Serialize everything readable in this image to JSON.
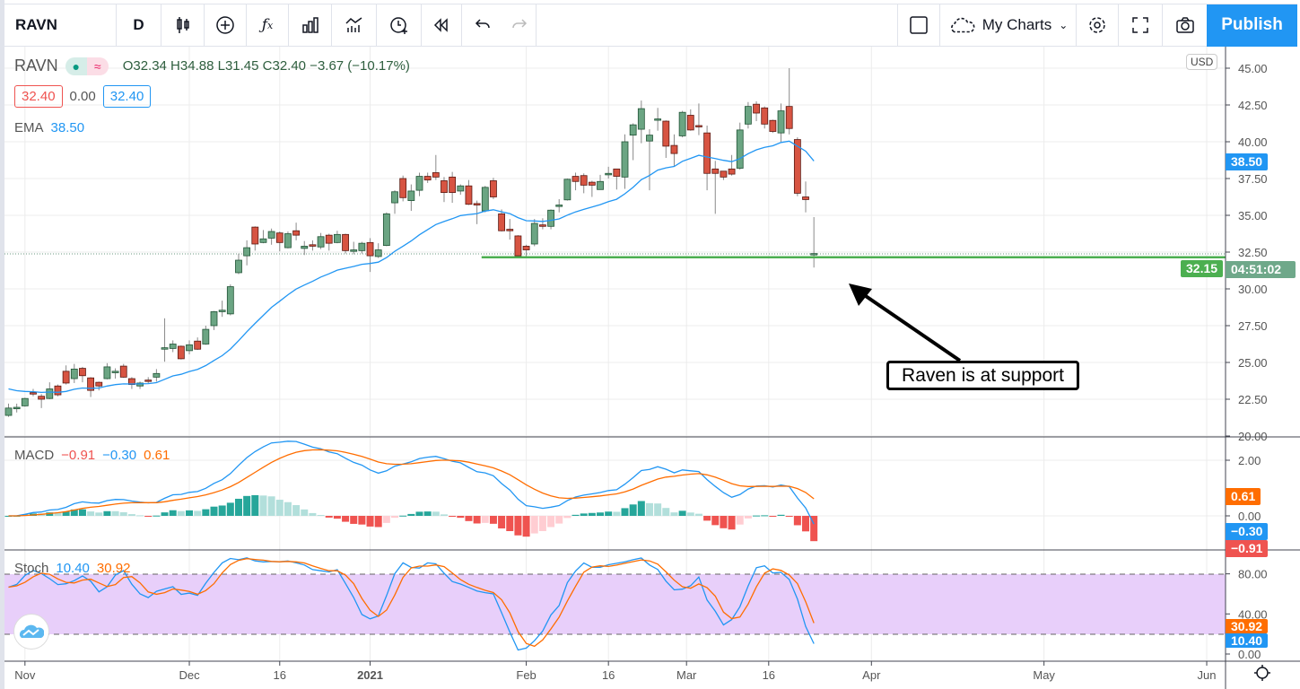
{
  "toolbar": {
    "symbol": "RAVN",
    "interval": "D",
    "my_charts": "My Charts",
    "publish": "Publish",
    "icons": [
      "candles-icon",
      "add-compare-icon",
      "indicators-icon",
      "bar-style-icon",
      "templates-icon",
      "alert-icon",
      "replay-icon",
      "undo-icon",
      "redo-icon",
      "layout-icon",
      "cloud-icon",
      "settings-icon",
      "fullscreen-icon",
      "camera-icon"
    ]
  },
  "legend": {
    "symbol": "RAVN",
    "ohlc": "O32.34 H34.88 L31.45 C32.40 −3.67 (−10.17%)",
    "bid": "32.40",
    "spread": "0.00",
    "ask": "32.40",
    "ema_label": "EMA",
    "ema_value": "38.50",
    "macd_label": "MACD",
    "macd_hist": "−0.91",
    "macd_value": "−0.30",
    "macd_signal": "0.61",
    "stoch_label": "Stoch",
    "stoch_k": "10.40",
    "stoch_d": "30.92"
  },
  "axis_labels": {
    "currency": "USD",
    "ema": "38.50",
    "countdown": "04:51:02",
    "support": "32.15",
    "macd_signal": "0.61",
    "macd_value": "−0.30",
    "macd_hist": "−0.91",
    "stoch_d": "30.92",
    "stoch_k": "10.40"
  },
  "annotation": {
    "text": "Raven is at support"
  },
  "colors": {
    "up": "#6ba583",
    "down": "#d75442",
    "ema": "#2196f3",
    "signal": "#ff6d00",
    "support": "#4caf50",
    "accent": "#2196f3"
  },
  "chart_data": {
    "type": "candlestick",
    "symbol": "RAVN",
    "interval": "D",
    "price_ticks": [
      "45.00",
      "42.50",
      "40.00",
      "37.50",
      "35.00",
      "32.50",
      "30.00",
      "27.50",
      "25.00",
      "22.50",
      "20.00"
    ],
    "price_range": [
      20,
      46.5
    ],
    "time_ticks": [
      {
        "label": "Nov",
        "i": 2
      },
      {
        "label": "Dec",
        "i": 22
      },
      {
        "label": "16",
        "i": 33
      },
      {
        "label": "2021",
        "i": 44,
        "bold": true
      },
      {
        "label": "Feb",
        "i": 63
      },
      {
        "label": "16",
        "i": 73
      },
      {
        "label": "Mar",
        "i": 82.5
      },
      {
        "label": "16",
        "i": 92.5
      },
      {
        "label": "Apr",
        "i": 105
      },
      {
        "label": "May",
        "i": 126
      },
      {
        "label": "Jun",
        "i": 145.8
      }
    ],
    "support_level": 32.15,
    "support_from_index": 58,
    "ema": {
      "period": 20,
      "seed": 23.2
    },
    "macd": {
      "fast": 12,
      "slow": 26,
      "signal": 9,
      "ticks": [
        "2.00",
        "0.00"
      ]
    },
    "stoch": {
      "k": 14,
      "smooth": 3,
      "d": 3,
      "upper": 80,
      "lower": 20,
      "ticks": [
        "80.00",
        "40.00",
        "0.00"
      ]
    },
    "ohlc": [
      [
        21.4,
        22.2,
        21.3,
        21.9
      ],
      [
        21.85,
        22.2,
        21.6,
        21.95
      ],
      [
        22.05,
        22.6,
        22.0,
        22.55
      ],
      [
        22.95,
        23.2,
        22.7,
        22.85
      ],
      [
        22.7,
        22.85,
        21.9,
        22.5
      ],
      [
        22.55,
        23.65,
        22.5,
        23.2
      ],
      [
        23.4,
        23.5,
        22.7,
        22.8
      ],
      [
        24.4,
        24.8,
        23.5,
        23.6
      ],
      [
        23.9,
        24.9,
        23.6,
        24.55
      ],
      [
        24.6,
        24.7,
        23.65,
        24.1
      ],
      [
        23.95,
        24.0,
        22.65,
        23.1
      ],
      [
        23.65,
        23.7,
        23.1,
        23.4
      ],
      [
        23.9,
        24.95,
        23.85,
        24.7
      ],
      [
        24.3,
        24.6,
        23.9,
        24.4
      ],
      [
        24.75,
        24.9,
        23.95,
        24.0
      ],
      [
        23.9,
        24.0,
        23.2,
        23.5
      ],
      [
        23.4,
        23.7,
        23.2,
        23.6
      ],
      [
        23.8,
        24.0,
        23.6,
        23.75
      ],
      [
        24.0,
        24.55,
        23.7,
        24.25
      ],
      [
        25.9,
        28.0,
        25.05,
        26.0
      ],
      [
        25.95,
        26.5,
        25.7,
        26.25
      ],
      [
        26.1,
        26.15,
        25.2,
        25.25
      ],
      [
        25.8,
        26.5,
        25.55,
        26.2
      ],
      [
        26.45,
        26.7,
        25.85,
        25.9
      ],
      [
        26.25,
        27.5,
        26.2,
        27.25
      ],
      [
        27.5,
        28.5,
        27.2,
        28.45
      ],
      [
        28.45,
        29.2,
        28.1,
        28.55
      ],
      [
        28.3,
        30.3,
        28.2,
        30.15
      ],
      [
        31.1,
        32.4,
        31.0,
        31.95
      ],
      [
        32.25,
        33.3,
        31.6,
        32.8
      ],
      [
        34.2,
        34.25,
        32.6,
        33.05
      ],
      [
        33.15,
        34.0,
        33.1,
        33.4
      ],
      [
        33.45,
        34.1,
        33.0,
        33.9
      ],
      [
        33.8,
        33.9,
        32.55,
        33.15
      ],
      [
        32.8,
        33.9,
        32.75,
        33.75
      ],
      [
        33.95,
        34.5,
        33.3,
        33.65
      ],
      [
        32.75,
        33.25,
        32.3,
        32.9
      ],
      [
        33.0,
        33.3,
        32.6,
        32.9
      ],
      [
        32.85,
        33.8,
        32.7,
        33.55
      ],
      [
        33.65,
        33.75,
        32.6,
        33.1
      ],
      [
        33.15,
        33.95,
        33.1,
        33.7
      ],
      [
        33.7,
        33.75,
        32.4,
        32.6
      ],
      [
        32.55,
        33.2,
        32.35,
        32.65
      ],
      [
        32.6,
        33.2,
        32.4,
        33.1
      ],
      [
        33.15,
        33.45,
        31.15,
        32.25
      ],
      [
        32.2,
        33.1,
        32.1,
        32.65
      ],
      [
        32.95,
        35.2,
        32.9,
        35.1
      ],
      [
        35.85,
        36.7,
        35.1,
        36.6
      ],
      [
        37.5,
        37.7,
        35.95,
        36.2
      ],
      [
        36.0,
        37.1,
        35.3,
        36.65
      ],
      [
        36.7,
        37.9,
        36.3,
        37.65
      ],
      [
        37.65,
        37.9,
        37.2,
        37.4
      ],
      [
        37.9,
        39.1,
        37.4,
        37.6
      ],
      [
        37.35,
        37.6,
        35.9,
        36.55
      ],
      [
        37.6,
        37.95,
        35.85,
        36.55
      ],
      [
        36.65,
        37.1,
        36.4,
        37.0
      ],
      [
        37.0,
        37.4,
        35.7,
        35.75
      ],
      [
        35.8,
        36.0,
        34.4,
        35.7
      ],
      [
        35.3,
        37.0,
        35.2,
        36.9
      ],
      [
        37.35,
        37.55,
        36.1,
        36.25
      ],
      [
        35.1,
        35.4,
        33.9,
        33.95
      ],
      [
        34.05,
        34.75,
        33.35,
        33.95
      ],
      [
        33.6,
        33.65,
        32.2,
        32.25
      ],
      [
        32.9,
        33.0,
        32.2,
        32.65
      ],
      [
        33.05,
        34.75,
        32.9,
        34.45
      ],
      [
        34.35,
        34.8,
        34.05,
        34.25
      ],
      [
        34.25,
        35.4,
        34.05,
        35.35
      ],
      [
        35.6,
        36.1,
        35.2,
        35.7
      ],
      [
        36.05,
        37.5,
        36.0,
        37.45
      ],
      [
        37.65,
        37.9,
        36.7,
        37.3
      ],
      [
        37.7,
        37.85,
        36.5,
        37.05
      ],
      [
        37.25,
        37.35,
        36.25,
        37.05
      ],
      [
        36.75,
        37.75,
        36.75,
        37.3
      ],
      [
        37.75,
        38.3,
        37.5,
        37.85
      ],
      [
        38.15,
        38.15,
        36.75,
        37.65
      ],
      [
        37.6,
        40.5,
        36.8,
        40.0
      ],
      [
        40.45,
        41.25,
        38.75,
        41.15
      ],
      [
        40.85,
        42.8,
        39.9,
        42.25
      ],
      [
        40.05,
        40.85,
        36.7,
        40.45
      ],
      [
        41.5,
        42.3,
        40.75,
        41.55
      ],
      [
        41.4,
        41.45,
        38.9,
        39.7
      ],
      [
        39.75,
        40.5,
        38.3,
        39.2
      ],
      [
        40.4,
        42.1,
        40.3,
        42.0
      ],
      [
        41.8,
        42.2,
        40.75,
        40.8
      ],
      [
        41.1,
        42.6,
        40.45,
        41.05
      ],
      [
        40.6,
        41.1,
        36.7,
        37.85
      ],
      [
        38.15,
        38.7,
        35.1,
        37.85
      ],
      [
        38.0,
        38.0,
        37.4,
        37.6
      ],
      [
        38.15,
        39.1,
        37.7,
        37.8
      ],
      [
        38.2,
        41.3,
        38.1,
        40.8
      ],
      [
        41.2,
        42.7,
        40.9,
        42.4
      ],
      [
        42.55,
        42.75,
        41.4,
        41.95
      ],
      [
        42.3,
        42.4,
        40.9,
        41.2
      ],
      [
        41.45,
        41.5,
        40.6,
        40.7
      ],
      [
        40.6,
        42.6,
        40.0,
        42.1
      ],
      [
        42.4,
        45.0,
        40.5,
        40.9
      ],
      [
        40.15,
        40.3,
        36.3,
        36.5
      ],
      [
        36.25,
        37.3,
        35.2,
        36.07
      ],
      [
        32.34,
        34.88,
        31.45,
        32.4
      ]
    ]
  }
}
